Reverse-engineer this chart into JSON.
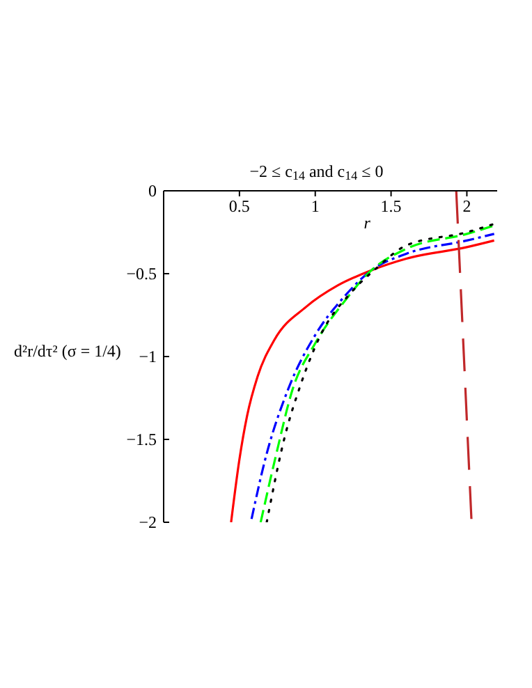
{
  "chart_data": {
    "type": "line",
    "title": "−2 ≤ c$_{14}$ and c$_{14}$ ≤ 0",
    "xlabel": "r",
    "ylabel": "d²r/dτ² (σ = 1/4)",
    "xlim": [
      0,
      2.2
    ],
    "ylim": [
      -2,
      0
    ],
    "xticks": [
      0.5,
      1,
      1.5,
      2
    ],
    "yticks": [
      0,
      -0.5,
      -1,
      -1.5,
      -2
    ],
    "grid": false,
    "series": [
      {
        "color": "#ff0000",
        "line_style": "solid",
        "x": [
          0.445,
          0.5,
          0.55,
          0.62,
          0.73,
          0.94,
          1.15,
          1.37,
          1.6,
          2,
          2.18
        ],
        "values": [
          -2,
          -1.62,
          -1.36,
          -1.12,
          -0.9,
          -0.7,
          -0.57,
          -0.48,
          -0.41,
          -0.34,
          -0.3
        ]
      },
      {
        "color": "#0000ff",
        "line_style": "dashdot",
        "x": [
          0.58,
          0.67,
          0.82,
          1,
          1.19,
          1.37,
          1.6,
          2,
          2.18
        ],
        "values": [
          -1.98,
          -1.62,
          -1.2,
          -0.87,
          -0.64,
          -0.48,
          -0.38,
          -0.3,
          -0.26
        ]
      },
      {
        "color": "#00ff00",
        "line_style": "dashed",
        "x": [
          0.64,
          0.74,
          0.85,
          1,
          1.19,
          1.37,
          1.6,
          2,
          2.18
        ],
        "values": [
          -2,
          -1.6,
          -1.2,
          -0.92,
          -0.67,
          -0.48,
          -0.35,
          -0.26,
          -0.21
        ]
      },
      {
        "color": "#000000",
        "line_style": "dotted",
        "x": [
          0.68,
          0.8,
          0.9,
          1.03,
          1.24,
          1.4,
          1.6,
          2,
          2.18
        ],
        "values": [
          -2,
          -1.48,
          -1.18,
          -0.88,
          -0.61,
          -0.47,
          -0.33,
          -0.25,
          -0.2
        ]
      },
      {
        "color": "#c0282a",
        "line_style": "longdash",
        "x": [
          1.93,
          2.03
        ],
        "values": [
          0,
          -1.98
        ]
      }
    ]
  }
}
